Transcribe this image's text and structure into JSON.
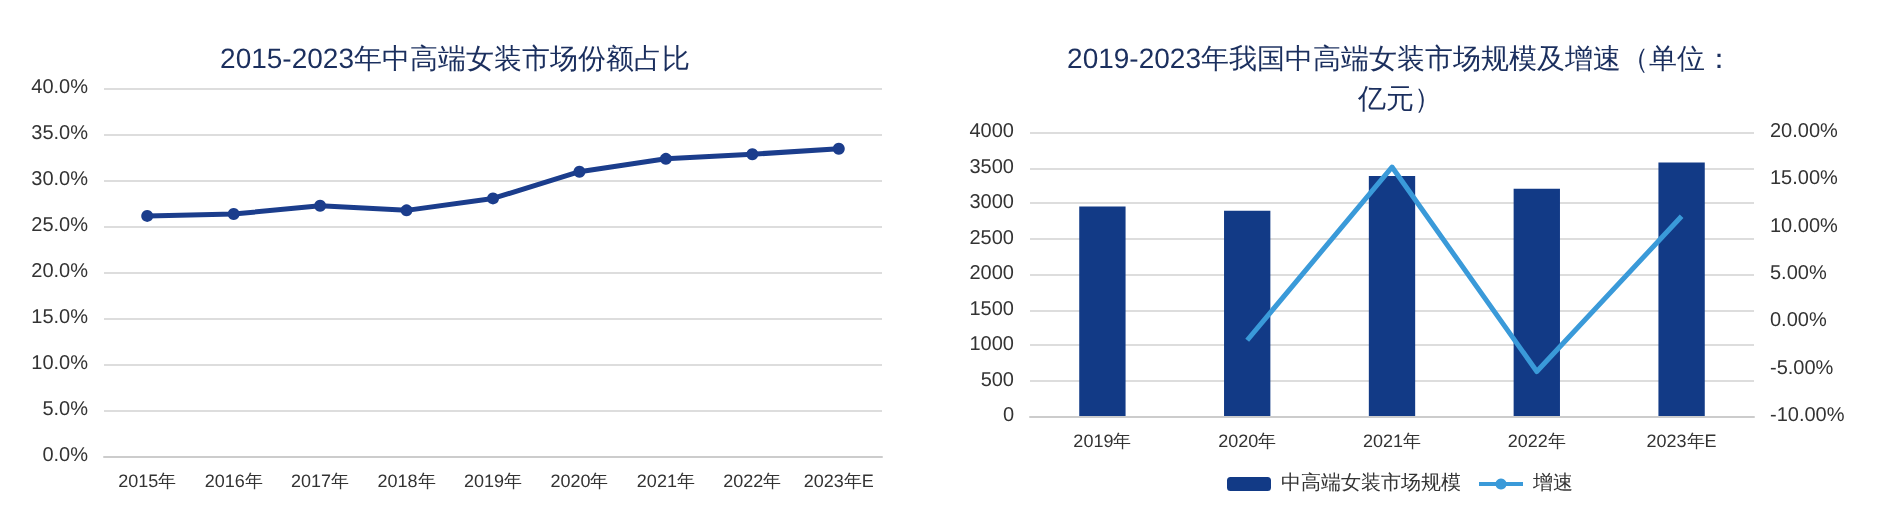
{
  "chart_data": [
    {
      "type": "line",
      "title": "2015-2023年中高端女装市场份额占比",
      "categories": [
        "2015年",
        "2016年",
        "2017年",
        "2018年",
        "2019年",
        "2020年",
        "2021年",
        "2022年",
        "2023年E"
      ],
      "series": [
        {
          "color": "#1b3d8c",
          "values": [
            26.1,
            26.3,
            27.2,
            26.7,
            28.0,
            30.9,
            32.3,
            32.8,
            33.4
          ]
        }
      ],
      "ylim": [
        0,
        40
      ],
      "yticks": [
        {
          "value": 0,
          "label": "0.0%"
        },
        {
          "value": 5,
          "label": "5.0%"
        },
        {
          "value": 10,
          "label": "10.0%"
        },
        {
          "value": 15,
          "label": "15.0%"
        },
        {
          "value": 20,
          "label": "20.0%"
        },
        {
          "value": 25,
          "label": "25.0%"
        },
        {
          "value": 30,
          "label": "30.0%"
        },
        {
          "value": 35,
          "label": "35.0%"
        },
        {
          "value": 40,
          "label": "40.0%"
        }
      ],
      "grid": "y",
      "marker": "circle",
      "legend": false
    },
    {
      "type": "bar",
      "title": "2019-2023年我国中高端女装市场规模及增速（单位：亿元）",
      "categories": [
        "2019年",
        "2020年",
        "2021年",
        "2022年",
        "2023年E"
      ],
      "series": [
        {
          "name": "中高端女装市场规模",
          "color": "#123a86",
          "values": [
            2950,
            2890,
            3380,
            3200,
            3570
          ]
        },
        {
          "name": "增速",
          "type": "line",
          "axis": "y2",
          "color": "#3a9ad9",
          "values": [
            null,
            -2.0,
            16.3,
            -5.3,
            11.1
          ]
        }
      ],
      "ylim": [
        0,
        4000
      ],
      "yticks": [
        0,
        500,
        1000,
        1500,
        2000,
        2500,
        3000,
        3500,
        4000
      ],
      "y2lim": [
        -10,
        20
      ],
      "y2ticks": [
        {
          "value": -10,
          "label": "-10.00%"
        },
        {
          "value": -5,
          "label": "-5.00%"
        },
        {
          "value": 0,
          "label": "0.00%"
        },
        {
          "value": 5,
          "label": "5.00%"
        },
        {
          "value": 10,
          "label": "10.00%"
        },
        {
          "value": 15,
          "label": "15.00%"
        },
        {
          "value": 20,
          "label": "20.00%"
        }
      ],
      "grid": "y",
      "legend": "bottom",
      "marker": "none"
    }
  ]
}
